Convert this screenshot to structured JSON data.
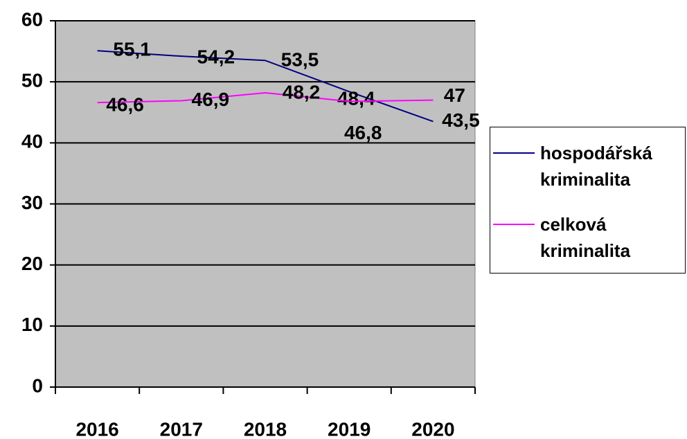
{
  "chart_data": {
    "type": "line",
    "categories": [
      "2016",
      "2017",
      "2018",
      "2019",
      "2020"
    ],
    "series": [
      {
        "name": "hospodářská kriminalita",
        "color": "#000080",
        "values": [
          55.1,
          54.2,
          53.5,
          48.4,
          43.5
        ],
        "value_labels": [
          "55,1",
          "54,2",
          "53,5",
          "48,4",
          "43,5"
        ]
      },
      {
        "name": "celková kriminalita",
        "color": "#ff00ff",
        "values": [
          46.6,
          46.9,
          48.2,
          46.8,
          47
        ],
        "value_labels": [
          "46,6",
          "46,9",
          "48,2",
          "46,8",
          "47"
        ]
      }
    ],
    "ylim": [
      0,
      60
    ],
    "yticks": [
      0,
      10,
      20,
      30,
      40,
      50,
      60
    ],
    "grid": true,
    "plot_background": "#c0c0c0",
    "legend": "right"
  }
}
